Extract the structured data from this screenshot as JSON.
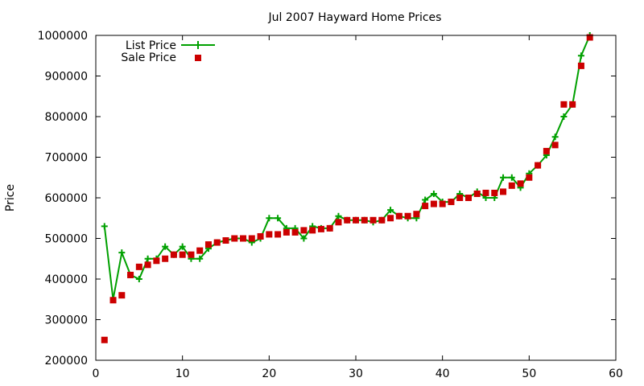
{
  "chart_data": {
    "type": "line",
    "title": "Jul 2007 Hayward Home Prices",
    "xlabel": "",
    "ylabel": "Price",
    "xlim": [
      0,
      60
    ],
    "ylim": [
      200000,
      1000000
    ],
    "xticks": [
      0,
      10,
      20,
      30,
      40,
      50,
      60
    ],
    "yticks": [
      200000,
      300000,
      400000,
      500000,
      600000,
      700000,
      800000,
      900000,
      1000000
    ],
    "grid": false,
    "legend_position": "top-left",
    "series": [
      {
        "name": "List Price",
        "style": "lines+crosses",
        "color": "#00a000",
        "x": [
          1,
          2,
          3,
          4,
          5,
          6,
          7,
          8,
          9,
          10,
          11,
          12,
          13,
          14,
          15,
          16,
          17,
          18,
          19,
          20,
          21,
          22,
          23,
          24,
          25,
          26,
          27,
          28,
          29,
          30,
          31,
          32,
          33,
          34,
          35,
          36,
          37,
          38,
          39,
          40,
          41,
          42,
          43,
          44,
          45,
          46,
          47,
          48,
          49,
          50,
          51,
          52,
          53,
          54,
          55,
          56,
          57
        ],
        "y": [
          530000,
          350000,
          465000,
          410000,
          400000,
          450000,
          450000,
          480000,
          460000,
          480000,
          450000,
          450000,
          475000,
          490000,
          495000,
          500000,
          500000,
          490000,
          500000,
          550000,
          550000,
          525000,
          525000,
          500000,
          530000,
          525000,
          525000,
          555000,
          545000,
          545000,
          545000,
          540000,
          545000,
          570000,
          555000,
          550000,
          550000,
          595000,
          610000,
          590000,
          590000,
          610000,
          600000,
          615000,
          600000,
          600000,
          650000,
          650000,
          625000,
          660000,
          680000,
          705000,
          750000,
          800000,
          830000,
          950000,
          1000000
        ]
      },
      {
        "name": "Sale Price",
        "style": "points (filled squares)",
        "color": "#cc0000",
        "x": [
          1,
          2,
          3,
          4,
          5,
          6,
          7,
          8,
          9,
          10,
          11,
          12,
          13,
          14,
          15,
          16,
          17,
          18,
          19,
          20,
          21,
          22,
          23,
          24,
          25,
          26,
          27,
          28,
          29,
          30,
          31,
          32,
          33,
          34,
          35,
          36,
          37,
          38,
          39,
          40,
          41,
          42,
          43,
          44,
          45,
          46,
          47,
          48,
          49,
          50,
          51,
          52,
          53,
          54,
          55,
          56,
          57
        ],
        "y": [
          250000,
          348000,
          360000,
          410000,
          430000,
          435000,
          445000,
          450000,
          460000,
          460000,
          460000,
          470000,
          485000,
          490000,
          495000,
          500000,
          500000,
          500000,
          505000,
          510000,
          510000,
          515000,
          515000,
          520000,
          520000,
          523000,
          525000,
          540000,
          545000,
          545000,
          545000,
          545000,
          545000,
          550000,
          555000,
          555000,
          560000,
          580000,
          585000,
          585000,
          590000,
          600000,
          600000,
          610000,
          612000,
          612000,
          615000,
          630000,
          635000,
          650000,
          680000,
          715000,
          730000,
          830000,
          830000,
          925000,
          995000
        ]
      }
    ]
  }
}
